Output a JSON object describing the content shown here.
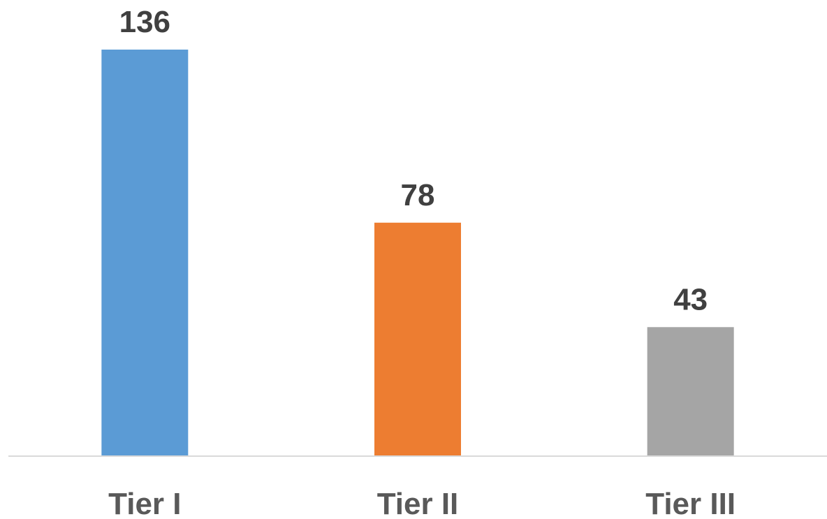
{
  "chart_data": {
    "type": "bar",
    "categories": [
      "Tier I",
      "Tier II",
      "Tier III"
    ],
    "values": [
      136,
      78,
      43
    ],
    "colors": [
      "#5B9BD5",
      "#ED7D31",
      "#A5A5A5"
    ],
    "title": "",
    "xlabel": "",
    "ylabel": "",
    "ylim": [
      0,
      136
    ],
    "grid": false,
    "legend": "none",
    "data_labels": true
  }
}
